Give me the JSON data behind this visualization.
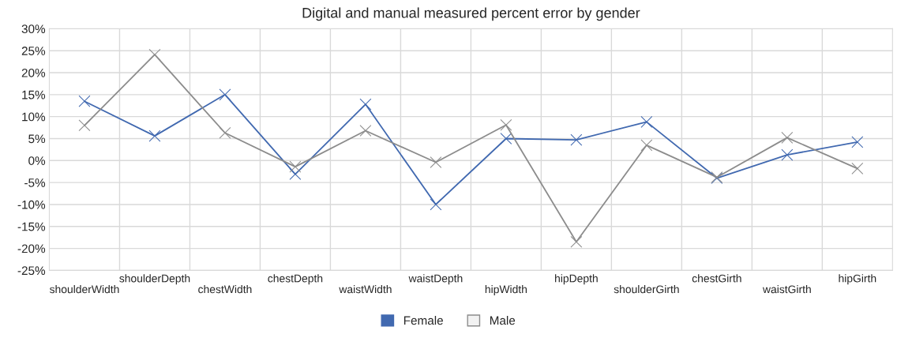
{
  "chart_data": {
    "type": "line",
    "title": "Digital and manual measured percent error by gender",
    "categories": [
      "shoulderWidth",
      "shoulderDepth",
      "chestWidth",
      "chestDepth",
      "waistWidth",
      "waistDepth",
      "hipWidth",
      "hipDepth",
      "shoulderGirth",
      "chestGirth",
      "waistGirth",
      "hipGirth"
    ],
    "series": [
      {
        "name": "Female",
        "color": "#4169b0",
        "values": [
          13.5,
          5.6,
          15.0,
          -3.1,
          12.8,
          -10.0,
          5.0,
          4.7,
          8.8,
          -4.0,
          1.3,
          4.2
        ]
      },
      {
        "name": "Male",
        "color": "#8c8c8c",
        "values": [
          8.0,
          24.1,
          6.3,
          -1.4,
          6.8,
          -0.4,
          8.1,
          -18.5,
          3.5,
          -3.8,
          5.2,
          -1.8
        ]
      }
    ],
    "ylim": [
      -25,
      30
    ],
    "yticks": [
      {
        "value": -25,
        "label": "-25%"
      },
      {
        "value": -20,
        "label": "-20%"
      },
      {
        "value": -15,
        "label": "-15%"
      },
      {
        "value": -10,
        "label": "-10%"
      },
      {
        "value": -5,
        "label": "-5%"
      },
      {
        "value": 0,
        "label": "0%"
      },
      {
        "value": 5,
        "label": "5%"
      },
      {
        "value": 10,
        "label": "10%"
      },
      {
        "value": 15,
        "label": "15%"
      },
      {
        "value": 20,
        "label": "20%"
      },
      {
        "value": 25,
        "label": "25%"
      },
      {
        "value": 30,
        "label": "30%"
      }
    ],
    "grid": true,
    "legend": "bottom",
    "marker": "cross",
    "line_style": "solid"
  }
}
